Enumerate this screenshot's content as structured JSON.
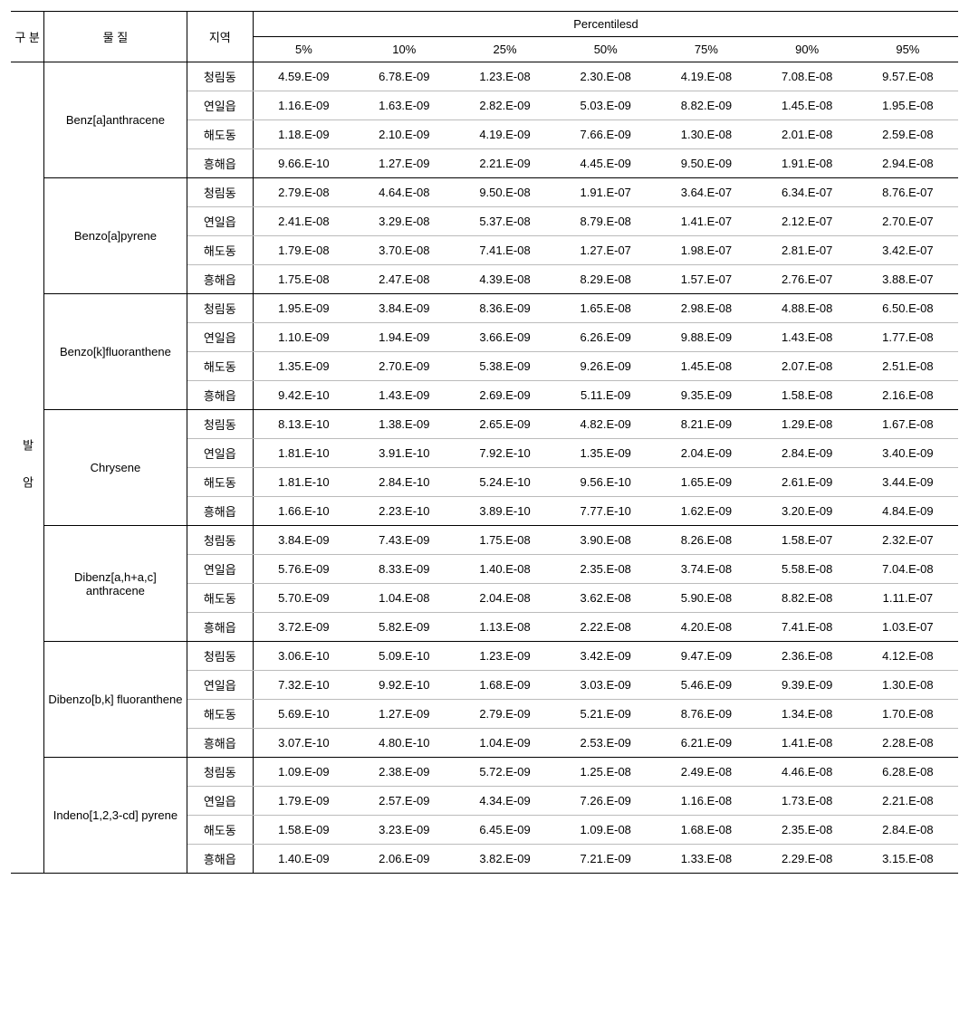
{
  "header": {
    "category": "구 분",
    "substance": "물 질",
    "region": "지역",
    "percentiles": "Percentilesd",
    "percentile_labels": [
      "5%",
      "10%",
      "25%",
      "50%",
      "75%",
      "90%",
      "95%"
    ]
  },
  "category_label": "발 암",
  "regions": [
    "청림동",
    "연일읍",
    "해도동",
    "흥해읍"
  ],
  "substances": [
    {
      "name": "Benz[a]anthracene",
      "rows": [
        [
          "4.59.E-09",
          "6.78.E-09",
          "1.23.E-08",
          "2.30.E-08",
          "4.19.E-08",
          "7.08.E-08",
          "9.57.E-08"
        ],
        [
          "1.16.E-09",
          "1.63.E-09",
          "2.82.E-09",
          "5.03.E-09",
          "8.82.E-09",
          "1.45.E-08",
          "1.95.E-08"
        ],
        [
          "1.18.E-09",
          "2.10.E-09",
          "4.19.E-09",
          "7.66.E-09",
          "1.30.E-08",
          "2.01.E-08",
          "2.59.E-08"
        ],
        [
          "9.66.E-10",
          "1.27.E-09",
          "2.21.E-09",
          "4.45.E-09",
          "9.50.E-09",
          "1.91.E-08",
          "2.94.E-08"
        ]
      ]
    },
    {
      "name": "Benzo[a]pyrene",
      "rows": [
        [
          "2.79.E-08",
          "4.64.E-08",
          "9.50.E-08",
          "1.91.E-07",
          "3.64.E-07",
          "6.34.E-07",
          "8.76.E-07"
        ],
        [
          "2.41.E-08",
          "3.29.E-08",
          "5.37.E-08",
          "8.79.E-08",
          "1.41.E-07",
          "2.12.E-07",
          "2.70.E-07"
        ],
        [
          "1.79.E-08",
          "3.70.E-08",
          "7.41.E-08",
          "1.27.E-07",
          "1.98.E-07",
          "2.81.E-07",
          "3.42.E-07"
        ],
        [
          "1.75.E-08",
          "2.47.E-08",
          "4.39.E-08",
          "8.29.E-08",
          "1.57.E-07",
          "2.76.E-07",
          "3.88.E-07"
        ]
      ]
    },
    {
      "name": "Benzo[k]fluoranthene",
      "rows": [
        [
          "1.95.E-09",
          "3.84.E-09",
          "8.36.E-09",
          "1.65.E-08",
          "2.98.E-08",
          "4.88.E-08",
          "6.50.E-08"
        ],
        [
          "1.10.E-09",
          "1.94.E-09",
          "3.66.E-09",
          "6.26.E-09",
          "9.88.E-09",
          "1.43.E-08",
          "1.77.E-08"
        ],
        [
          "1.35.E-09",
          "2.70.E-09",
          "5.38.E-09",
          "9.26.E-09",
          "1.45.E-08",
          "2.07.E-08",
          "2.51.E-08"
        ],
        [
          "9.42.E-10",
          "1.43.E-09",
          "2.69.E-09",
          "5.11.E-09",
          "9.35.E-09",
          "1.58.E-08",
          "2.16.E-08"
        ]
      ]
    },
    {
      "name": "Chrysene",
      "rows": [
        [
          "8.13.E-10",
          "1.38.E-09",
          "2.65.E-09",
          "4.82.E-09",
          "8.21.E-09",
          "1.29.E-08",
          "1.67.E-08"
        ],
        [
          "1.81.E-10",
          "3.91.E-10",
          "7.92.E-10",
          "1.35.E-09",
          "2.04.E-09",
          "2.84.E-09",
          "3.40.E-09"
        ],
        [
          "1.81.E-10",
          "2.84.E-10",
          "5.24.E-10",
          "9.56.E-10",
          "1.65.E-09",
          "2.61.E-09",
          "3.44.E-09"
        ],
        [
          "1.66.E-10",
          "2.23.E-10",
          "3.89.E-10",
          "7.77.E-10",
          "1.62.E-09",
          "3.20.E-09",
          "4.84.E-09"
        ]
      ]
    },
    {
      "name": "Dibenz[a,h+a,c] anthracene",
      "rows": [
        [
          "3.84.E-09",
          "7.43.E-09",
          "1.75.E-08",
          "3.90.E-08",
          "8.26.E-08",
          "1.58.E-07",
          "2.32.E-07"
        ],
        [
          "5.76.E-09",
          "8.33.E-09",
          "1.40.E-08",
          "2.35.E-08",
          "3.74.E-08",
          "5.58.E-08",
          "7.04.E-08"
        ],
        [
          "5.70.E-09",
          "1.04.E-08",
          "2.04.E-08",
          "3.62.E-08",
          "5.90.E-08",
          "8.82.E-08",
          "1.11.E-07"
        ],
        [
          "3.72.E-09",
          "5.82.E-09",
          "1.13.E-08",
          "2.22.E-08",
          "4.20.E-08",
          "7.41.E-08",
          "1.03.E-07"
        ]
      ]
    },
    {
      "name": "Dibenzo[b,k] fluoranthene",
      "rows": [
        [
          "3.06.E-10",
          "5.09.E-10",
          "1.23.E-09",
          "3.42.E-09",
          "9.47.E-09",
          "2.36.E-08",
          "4.12.E-08"
        ],
        [
          "7.32.E-10",
          "9.92.E-10",
          "1.68.E-09",
          "3.03.E-09",
          "5.46.E-09",
          "9.39.E-09",
          "1.30.E-08"
        ],
        [
          "5.69.E-10",
          "1.27.E-09",
          "2.79.E-09",
          "5.21.E-09",
          "8.76.E-09",
          "1.34.E-08",
          "1.70.E-08"
        ],
        [
          "3.07.E-10",
          "4.80.E-10",
          "1.04.E-09",
          "2.53.E-09",
          "6.21.E-09",
          "1.41.E-08",
          "2.28.E-08"
        ]
      ]
    },
    {
      "name": "Indeno[1,2,3-cd] pyrene",
      "rows": [
        [
          "1.09.E-09",
          "2.38.E-09",
          "5.72.E-09",
          "1.25.E-08",
          "2.49.E-08",
          "4.46.E-08",
          "6.28.E-08"
        ],
        [
          "1.79.E-09",
          "2.57.E-09",
          "4.34.E-09",
          "7.26.E-09",
          "1.16.E-08",
          "1.73.E-08",
          "2.21.E-08"
        ],
        [
          "1.58.E-09",
          "3.23.E-09",
          "6.45.E-09",
          "1.09.E-08",
          "1.68.E-08",
          "2.35.E-08",
          "2.84.E-08"
        ],
        [
          "1.40.E-09",
          "2.06.E-09",
          "3.82.E-09",
          "7.21.E-09",
          "1.33.E-08",
          "2.29.E-08",
          "3.15.E-08"
        ]
      ]
    }
  ]
}
